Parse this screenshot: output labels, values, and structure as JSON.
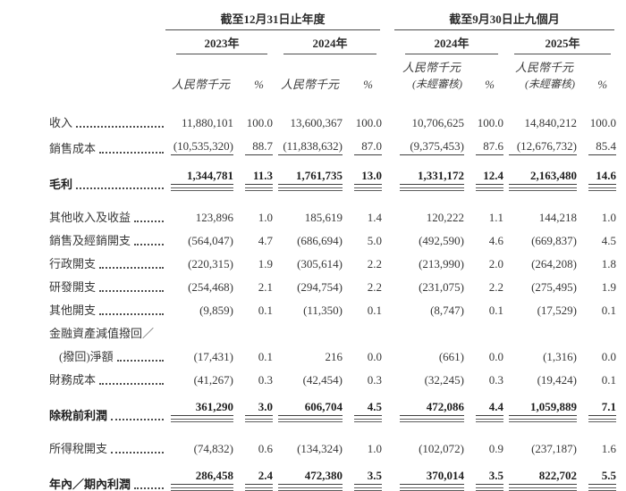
{
  "table": {
    "groups": [
      {
        "title": "截至12月31日止年度",
        "years": [
          "2023年",
          "2024年"
        ]
      },
      {
        "title": "截至9月30日止九個月",
        "years": [
          "2024年",
          "2025年"
        ]
      }
    ],
    "unit_label": "人民幣千元",
    "percent_label": "%",
    "unaudited_label": "(未經審核)",
    "rows": [
      {
        "label": "收入",
        "emphasis": "normal",
        "gap": "first",
        "values": [
          "11,880,101",
          "100.0",
          "13,600,367",
          "100.0",
          "10,706,625",
          "100.0",
          "14,840,212",
          "100.0"
        ]
      },
      {
        "label": "銷售成本",
        "emphasis": "underline",
        "values": [
          "(10,535,320)",
          "88.7",
          "(11,838,632)",
          "87.0",
          "(9,375,453)",
          "87.6",
          "(12,676,732)",
          "85.4"
        ]
      },
      {
        "label": "毛利",
        "emphasis": "total",
        "gap": "sm",
        "values": [
          "1,344,781",
          "11.3",
          "1,761,735",
          "13.0",
          "1,331,172",
          "12.4",
          "2,163,480",
          "14.6"
        ]
      },
      {
        "label": "其他收入及收益",
        "emphasis": "normal",
        "gap": "lg",
        "values": [
          "123,896",
          "1.0",
          "185,619",
          "1.4",
          "120,222",
          "1.1",
          "144,218",
          "1.0"
        ]
      },
      {
        "label": "銷售及經銷開支",
        "emphasis": "normal",
        "values": [
          "(564,047)",
          "4.7",
          "(686,694)",
          "5.0",
          "(492,590)",
          "4.6",
          "(669,837)",
          "4.5"
        ]
      },
      {
        "label": "行政開支",
        "emphasis": "normal",
        "values": [
          "(220,315)",
          "1.9",
          "(305,614)",
          "2.2",
          "(213,990)",
          "2.0",
          "(264,208)",
          "1.8"
        ]
      },
      {
        "label": "研發開支",
        "emphasis": "normal",
        "values": [
          "(254,468)",
          "2.1",
          "(294,754)",
          "2.2",
          "(231,075)",
          "2.2",
          "(275,495)",
          "1.9"
        ]
      },
      {
        "label": "其他開支",
        "emphasis": "normal",
        "values": [
          "(9,859)",
          "0.1",
          "(11,350)",
          "0.1",
          "(8,747)",
          "0.1",
          "(17,529)",
          "0.1"
        ]
      },
      {
        "label": "金融資產減值撥回／",
        "emphasis": "normal",
        "leader": false,
        "values": null
      },
      {
        "label": "(撥回)淨額",
        "emphasis": "normal",
        "indent": true,
        "values": [
          "(17,431)",
          "0.1",
          "216",
          "0.0",
          "(661)",
          "0.0",
          "(1,316)",
          "0.0"
        ]
      },
      {
        "label": "財務成本",
        "emphasis": "normal",
        "values": [
          "(41,267)",
          "0.3",
          "(42,454)",
          "0.3",
          "(32,245)",
          "0.3",
          "(19,424)",
          "0.1"
        ]
      },
      {
        "label": "除稅前利潤",
        "emphasis": "total",
        "gap": "sm",
        "values": [
          "361,290",
          "3.0",
          "606,704",
          "4.5",
          "472,086",
          "4.4",
          "1,059,889",
          "7.1"
        ]
      },
      {
        "label": "所得稅開支",
        "emphasis": "normal",
        "gap": "lg",
        "values": [
          "(74,832)",
          "0.6",
          "(134,324)",
          "1.0",
          "(102,072)",
          "0.9",
          "(237,187)",
          "1.6"
        ]
      },
      {
        "label": "年內／期內利潤",
        "emphasis": "total",
        "gap": "sm",
        "values": [
          "286,458",
          "2.4",
          "472,380",
          "3.5",
          "370,014",
          "3.5",
          "822,702",
          "5.5"
        ]
      }
    ]
  }
}
